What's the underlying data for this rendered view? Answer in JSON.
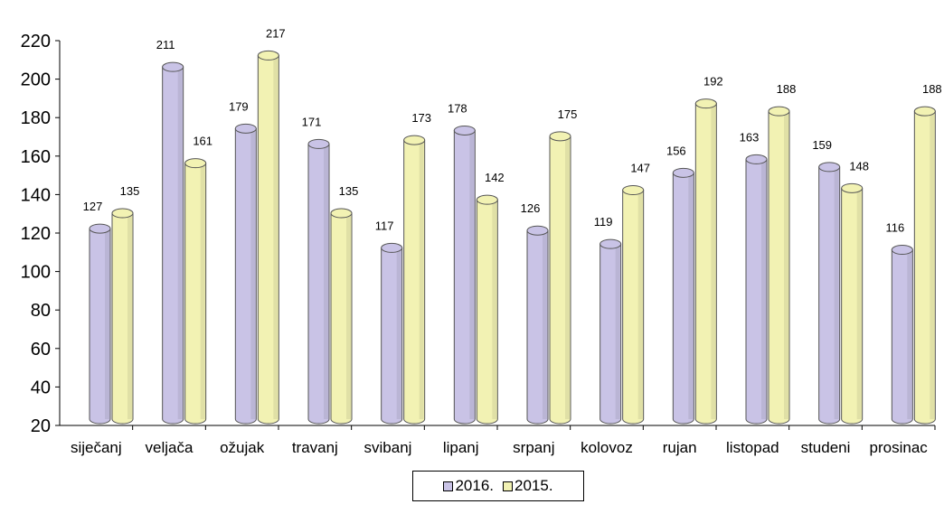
{
  "chart_data": {
    "type": "bar",
    "categories": [
      "siječanj",
      "veljača",
      "ožujak",
      "travanj",
      "svibanj",
      "lipanj",
      "srpanj",
      "kolovoz",
      "rujan",
      "listopad",
      "studeni",
      "prosinac"
    ],
    "series": [
      {
        "name": "2016.",
        "values": [
          127,
          211,
          179,
          171,
          117,
          178,
          126,
          119,
          156,
          163,
          159,
          116
        ],
        "color": "#c9c3e6"
      },
      {
        "name": "2015.",
        "values": [
          135,
          161,
          217,
          135,
          173,
          142,
          175,
          147,
          192,
          188,
          148,
          188
        ],
        "color": "#f2f2b3"
      }
    ],
    "ylim": [
      20,
      220
    ],
    "yticks": [
      "20",
      "40",
      "60",
      "80",
      "100",
      "120",
      "140",
      "160",
      "180",
      "200",
      "220"
    ],
    "grid": false,
    "legend": "bottom-center",
    "title": "",
    "xlabel": "",
    "ylabel": ""
  },
  "legend": {
    "items": [
      {
        "label": "2016.",
        "color": "#c9c3e6"
      },
      {
        "label": "2015.",
        "color": "#f2f2b3"
      }
    ]
  }
}
